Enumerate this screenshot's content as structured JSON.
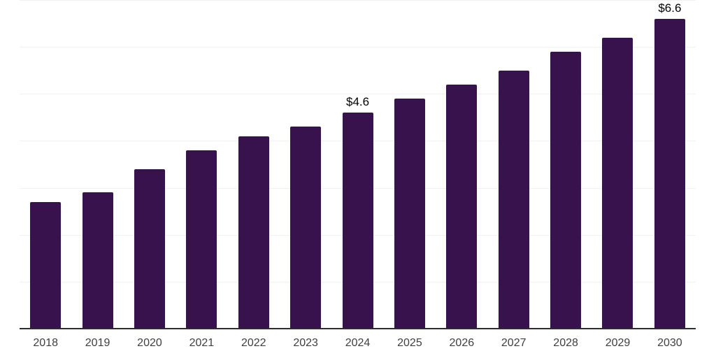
{
  "chart": {
    "background_color": "#ffffff",
    "bar_color": "#37124C",
    "grid_color": "#f1f1f1",
    "axis_color": "#2d2d2d",
    "tick_label_color": "#404040",
    "data_label_color": "#000000"
  },
  "chart_data": {
    "type": "bar",
    "title": "",
    "xlabel": "",
    "ylabel": "",
    "categories": [
      "2018",
      "2019",
      "2020",
      "2021",
      "2022",
      "2023",
      "2024",
      "2025",
      "2026",
      "2027",
      "2028",
      "2029",
      "2030"
    ],
    "values": [
      2.7,
      2.9,
      3.4,
      3.8,
      4.1,
      4.3,
      4.6,
      4.9,
      5.2,
      5.5,
      5.9,
      6.2,
      6.6
    ],
    "data_labels": [
      {
        "category": "2024",
        "text": "$4.6"
      },
      {
        "category": "2030",
        "text": "$6.6"
      }
    ],
    "ylim": [
      0,
      7
    ],
    "gridline_step": 1,
    "grid": "horizontal",
    "legend": "none",
    "y_axis_labels_visible": false
  }
}
